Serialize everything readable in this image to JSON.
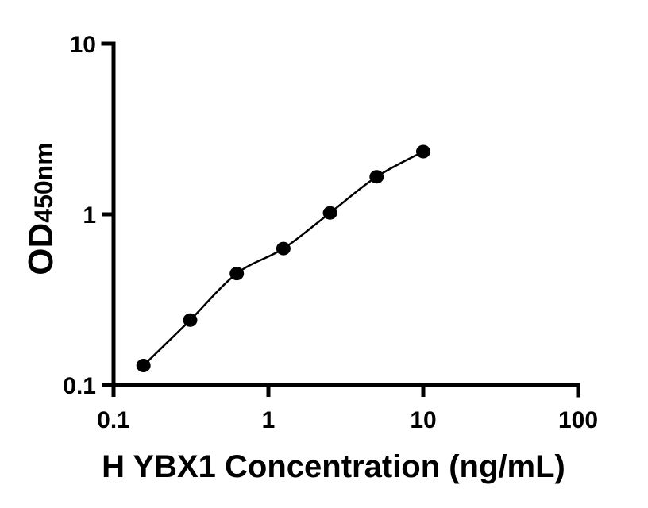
{
  "chart_data": {
    "type": "scatter",
    "description": "ELISA standard curve, log-log axes, black dots with smooth fitted line",
    "x": [
      0.156,
      0.3125,
      0.625,
      1.25,
      2.5,
      5,
      10
    ],
    "y": [
      0.13,
      0.24,
      0.45,
      0.63,
      1.02,
      1.66,
      2.33
    ],
    "xlabel": "H YBX1 Concentration (ng/mL)",
    "ylabel": "OD450nm",
    "ylabel_main": "OD",
    "ylabel_sub": "450nm",
    "xscale": "log",
    "yscale": "log",
    "xlim": [
      0.1,
      100
    ],
    "ylim": [
      0.1,
      10
    ],
    "x_tick_values": [
      0.1,
      1,
      10,
      100
    ],
    "x_tick_labels": [
      "0.1",
      "1",
      "10",
      "100"
    ],
    "y_tick_values": [
      0.1,
      1,
      10
    ],
    "y_tick_labels": [
      "0.1",
      "1",
      "10"
    ],
    "grid": false,
    "legend": false
  },
  "colors": {
    "foreground": "#000000",
    "background": "#ffffff"
  }
}
